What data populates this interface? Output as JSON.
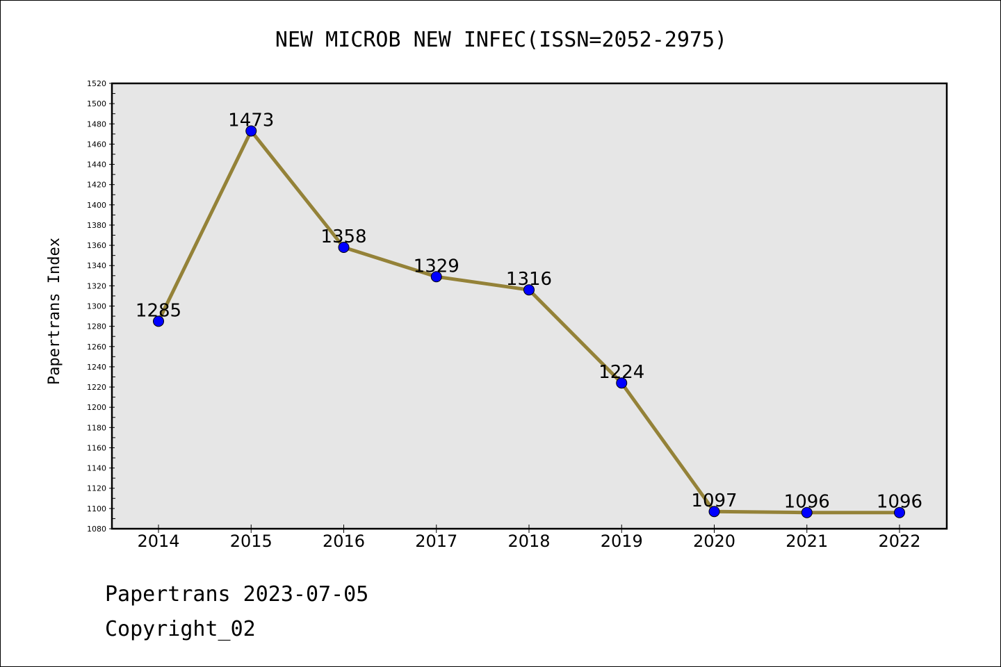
{
  "chart_data": {
    "type": "line",
    "title": "NEW MICROB NEW INFEC(ISSN=2052-2975)",
    "ylabel": "Papertrans Index",
    "xlabel": "",
    "x": [
      "2014",
      "2015",
      "2016",
      "2017",
      "2018",
      "2019",
      "2020",
      "2021",
      "2022"
    ],
    "series": [
      {
        "values": [
          1285,
          1473,
          1358,
          1329,
          1316,
          1224,
          1097,
          1096,
          1096
        ]
      }
    ],
    "ylim": [
      1080,
      1520
    ],
    "ytick_step": 20,
    "grid": false,
    "line_color": "#948238",
    "marker_color": "#0000ff",
    "plot_background": "#e6e6e6"
  },
  "footer": {
    "line1": "Papertrans 2023-07-05",
    "line2": "Copyright_02"
  }
}
